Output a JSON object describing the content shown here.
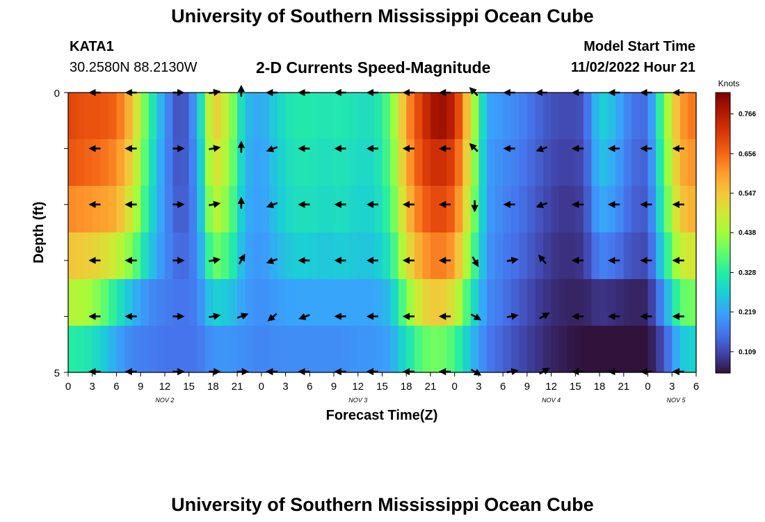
{
  "page": {
    "title": "University of Southern Mississippi Ocean Cube",
    "footer_title": "University of Southern Mississippi Ocean Cube",
    "station": "KATA1",
    "coords": "30.2580N  88.2130W",
    "plot_title": "2-D Currents Speed-Magnitude",
    "model_label": "Model Start Time",
    "model_time": "11/02/2022 Hour 21"
  },
  "chart_data": {
    "type": "heatmap",
    "title": "2-D Currents Speed-Magnitude",
    "xlabel": "Forecast Time(Z)",
    "ylabel": "Depth (ft)",
    "ylim": [
      0,
      5
    ],
    "y_tick_labels": [
      "0",
      "5"
    ],
    "x_hours_start": 0,
    "x_hours_end": 78,
    "x_tick_labels": [
      "0",
      "3",
      "6",
      "9",
      "12",
      "15",
      "18",
      "21",
      "0",
      "3",
      "6",
      "9",
      "12",
      "15",
      "18",
      "21",
      "0",
      "3",
      "6",
      "9",
      "12",
      "15",
      "18",
      "21",
      "0",
      "3",
      "6"
    ],
    "date_labels": [
      {
        "label": "NOV 2",
        "hour": 12
      },
      {
        "label": "NOV 3",
        "hour": 36
      },
      {
        "label": "NOV 4",
        "hour": 60
      },
      {
        "label": "NOV 5",
        "hour": 75.5
      }
    ],
    "colorbar": {
      "unit": "Knots",
      "min": 0.05,
      "max": 0.825,
      "ticks": [
        "0.766",
        "0.656",
        "0.547",
        "0.438",
        "0.328",
        "0.219",
        "0.109"
      ],
      "colors": [
        "#30123b",
        "#4145ab",
        "#4675ed",
        "#39a2fc",
        "#1bcfd4",
        "#24eca6",
        "#61fc6c",
        "#a4fc3b",
        "#d1e834",
        "#f3c63a",
        "#fe9b2d",
        "#f36315",
        "#d93806",
        "#b11901",
        "#7a0402"
      ]
    },
    "depth_rows": [
      0,
      1,
      2,
      3,
      4,
      5
    ],
    "speed_grid_hours": [
      0,
      2,
      4,
      6,
      8,
      10,
      12,
      14,
      16,
      18,
      20,
      22,
      24,
      26,
      28,
      30,
      32,
      34,
      36,
      38,
      40,
      42,
      44,
      46,
      48,
      50,
      52,
      54,
      56,
      58,
      60,
      62,
      64,
      66,
      68,
      70,
      72,
      74,
      76,
      78
    ],
    "speed_profile": [
      [
        0.7,
        0.68,
        0.68,
        0.66,
        0.55,
        0.35,
        0.2,
        0.1,
        0.22,
        0.55,
        0.45,
        0.25,
        0.22,
        0.28,
        0.32,
        0.32,
        0.31,
        0.32,
        0.3,
        0.3,
        0.38,
        0.6,
        0.72,
        0.8,
        0.75,
        0.5,
        0.22,
        0.2,
        0.18,
        0.15,
        0.12,
        0.11,
        0.12,
        0.28,
        0.24,
        0.16,
        0.15,
        0.4,
        0.6,
        0.65
      ],
      [
        0.68,
        0.66,
        0.65,
        0.62,
        0.52,
        0.33,
        0.19,
        0.11,
        0.2,
        0.52,
        0.43,
        0.24,
        0.21,
        0.27,
        0.31,
        0.31,
        0.3,
        0.31,
        0.29,
        0.29,
        0.37,
        0.58,
        0.7,
        0.74,
        0.7,
        0.48,
        0.21,
        0.19,
        0.17,
        0.14,
        0.11,
        0.1,
        0.11,
        0.26,
        0.22,
        0.15,
        0.14,
        0.38,
        0.58,
        0.62
      ],
      [
        0.62,
        0.61,
        0.6,
        0.58,
        0.48,
        0.31,
        0.19,
        0.12,
        0.19,
        0.48,
        0.4,
        0.23,
        0.21,
        0.26,
        0.3,
        0.3,
        0.29,
        0.3,
        0.28,
        0.28,
        0.35,
        0.55,
        0.66,
        0.7,
        0.66,
        0.45,
        0.21,
        0.18,
        0.16,
        0.13,
        0.1,
        0.09,
        0.1,
        0.23,
        0.2,
        0.14,
        0.13,
        0.35,
        0.55,
        0.58
      ],
      [
        0.55,
        0.54,
        0.52,
        0.48,
        0.4,
        0.27,
        0.19,
        0.14,
        0.18,
        0.4,
        0.35,
        0.22,
        0.2,
        0.24,
        0.27,
        0.27,
        0.26,
        0.27,
        0.26,
        0.26,
        0.31,
        0.5,
        0.6,
        0.64,
        0.6,
        0.4,
        0.2,
        0.17,
        0.15,
        0.12,
        0.09,
        0.08,
        0.09,
        0.18,
        0.16,
        0.12,
        0.11,
        0.3,
        0.48,
        0.5
      ],
      [
        0.46,
        0.45,
        0.4,
        0.32,
        0.24,
        0.19,
        0.17,
        0.16,
        0.17,
        0.28,
        0.26,
        0.21,
        0.19,
        0.21,
        0.22,
        0.22,
        0.22,
        0.22,
        0.22,
        0.22,
        0.25,
        0.4,
        0.52,
        0.55,
        0.5,
        0.32,
        0.19,
        0.16,
        0.13,
        0.1,
        0.08,
        0.07,
        0.07,
        0.09,
        0.08,
        0.07,
        0.07,
        0.2,
        0.38,
        0.4
      ],
      [
        0.33,
        0.32,
        0.28,
        0.22,
        0.18,
        0.17,
        0.16,
        0.16,
        0.16,
        0.2,
        0.2,
        0.19,
        0.18,
        0.19,
        0.19,
        0.19,
        0.19,
        0.19,
        0.2,
        0.2,
        0.22,
        0.3,
        0.38,
        0.4,
        0.36,
        0.25,
        0.17,
        0.14,
        0.11,
        0.09,
        0.07,
        0.06,
        0.05,
        0.05,
        0.05,
        0.05,
        0.05,
        0.12,
        0.26,
        0.28
      ]
    ],
    "arrows": {
      "hours": [
        3.5,
        8,
        13.5,
        18,
        21.5,
        25.5,
        29.5,
        34,
        38,
        42.5,
        47,
        50.5,
        55,
        59,
        63.5,
        68,
        72,
        76
      ],
      "depths": [
        0,
        1,
        2,
        3,
        4,
        5
      ],
      "directions_deg": [
        [
          180,
          180,
          0,
          10,
          90,
          180,
          180,
          180,
          180,
          180,
          180,
          135,
          180,
          180,
          180,
          180,
          180,
          180
        ],
        [
          180,
          180,
          0,
          10,
          90,
          200,
          180,
          180,
          180,
          180,
          180,
          135,
          180,
          200,
          180,
          180,
          180,
          180
        ],
        [
          180,
          180,
          0,
          10,
          90,
          200,
          180,
          180,
          180,
          180,
          180,
          270,
          180,
          200,
          180,
          180,
          180,
          180
        ],
        [
          180,
          180,
          0,
          10,
          60,
          200,
          180,
          180,
          180,
          180,
          180,
          300,
          10,
          130,
          180,
          180,
          180,
          180
        ],
        [
          180,
          180,
          0,
          10,
          20,
          220,
          200,
          180,
          180,
          180,
          180,
          330,
          10,
          30,
          180,
          180,
          180,
          180
        ],
        [
          180,
          180,
          0,
          0,
          0,
          180,
          180,
          180,
          180,
          180,
          180,
          330,
          10,
          30,
          180,
          180,
          180,
          180
        ]
      ]
    }
  }
}
